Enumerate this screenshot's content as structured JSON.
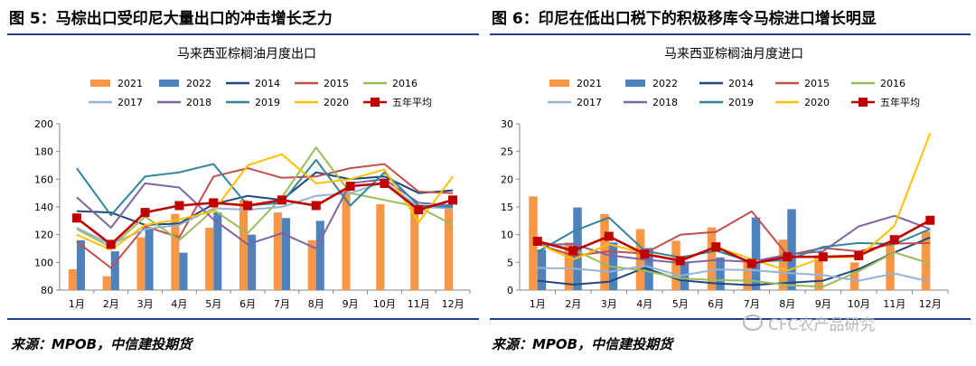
{
  "left_figure": {
    "title": "图 5：马棕出口受印尼大量出口的冲击增长乏力",
    "source": "来源：MPOB，中信建投期货"
  },
  "right_figure": {
    "title": "图 6：印尼在低出口税下的积极移库令马棕进口增长明显",
    "source": "来源：MPOB，中信建投期货"
  },
  "watermark": {
    "text": "CFC农产品研究",
    "icon": "wechat-icon"
  },
  "chart_data": [
    {
      "type": "line",
      "title": "马来西亚棕榈油月度出口",
      "categories": [
        "1月",
        "2月",
        "3月",
        "4月",
        "5月",
        "6月",
        "7月",
        "8月",
        "9月",
        "10月",
        "11月",
        "12月"
      ],
      "ylim": [
        80,
        200
      ],
      "yticks": [
        80,
        100,
        120,
        140,
        160,
        180,
        200
      ],
      "grid": false,
      "legend_position": "top",
      "bar_series": [
        {
          "name": "2021",
          "color": "#f79646",
          "values": [
            95,
            90,
            118,
            135,
            125,
            145,
            136,
            116,
            153,
            142,
            141,
            142
          ]
        },
        {
          "name": "2022",
          "color": "#4f81bd",
          "values": [
            116,
            108,
            125,
            107,
            136,
            120,
            132,
            130,
            null,
            null,
            null,
            null
          ]
        }
      ],
      "line_series": [
        {
          "name": "2014",
          "color": "#1f497d",
          "values": [
            137,
            136,
            127,
            128,
            142,
            148,
            145,
            165,
            160,
            162,
            150,
            152
          ]
        },
        {
          "name": "2015",
          "color": "#c0504d",
          "values": [
            115,
            96,
            126,
            118,
            162,
            168,
            161,
            162,
            168,
            171,
            151,
            150
          ]
        },
        {
          "name": "2016",
          "color": "#9bbb59",
          "values": [
            124,
            111,
            133,
            116,
            138,
            121,
            147,
            183,
            150,
            145,
            140,
            127
          ]
        },
        {
          "name": "2017",
          "color": "#95b3d7",
          "values": [
            125,
            113,
            124,
            127,
            139,
            138,
            140,
            148,
            150,
            158,
            140,
            139
          ]
        },
        {
          "name": "2018",
          "color": "#8064a2",
          "values": [
            147,
            125,
            157,
            154,
            131,
            113,
            121,
            110,
            157,
            160,
            143,
            141
          ]
        },
        {
          "name": "2019",
          "color": "#31859c",
          "values": [
            168,
            134,
            162,
            165,
            171,
            141,
            143,
            174,
            141,
            165,
            141,
            140
          ]
        },
        {
          "name": "2020",
          "color": "#ffc000",
          "values": [
            120,
            109,
            127,
            131,
            137,
            170,
            178,
            157,
            160,
            167,
            129,
            162
          ]
        },
        {
          "name": "五年平均",
          "color": "#c00000",
          "marker": "square",
          "values": [
            132,
            113,
            136,
            141,
            143,
            141,
            145,
            141,
            155,
            157,
            138,
            145
          ]
        }
      ]
    },
    {
      "type": "line",
      "title": "马来西亚棕榈油月度进口",
      "categories": [
        "1月",
        "2月",
        "3月",
        "4月",
        "5月",
        "6月",
        "7月",
        "8月",
        "9月",
        "10月",
        "11月",
        "12月"
      ],
      "ylim": [
        0,
        30
      ],
      "yticks": [
        0,
        5,
        10,
        15,
        20,
        25,
        30
      ],
      "grid": false,
      "legend_position": "top",
      "bar_series": [
        {
          "name": "2021",
          "color": "#f79646",
          "values": [
            16.9,
            8.6,
            13.7,
            11.0,
            8.9,
            11.3,
            5.4,
            9.1,
            6.3,
            5.0,
            8.4,
            10.6
          ]
        },
        {
          "name": "2022",
          "color": "#4f81bd",
          "values": [
            7.3,
            14.9,
            8.6,
            7.6,
            5.1,
            5.9,
            13.1,
            14.6,
            null,
            null,
            null,
            null
          ]
        }
      ],
      "line_series": [
        {
          "name": "2014",
          "color": "#1f497d",
          "values": [
            1.7,
            1.0,
            1.5,
            4.0,
            1.8,
            1.2,
            0.9,
            1.3,
            1.7,
            3.8,
            6.8,
            9.5
          ]
        },
        {
          "name": "2015",
          "color": "#c0504d",
          "values": [
            8.3,
            6.2,
            7.0,
            6.6,
            10.0,
            10.5,
            14.2,
            6.3,
            7.6,
            7.0,
            8.4,
            8.5
          ]
        },
        {
          "name": "2016",
          "color": "#9bbb59",
          "values": [
            8.9,
            7.3,
            4.3,
            3.5,
            2.1,
            1.8,
            1.7,
            0.9,
            0.6,
            3.4,
            6.8,
            4.8
          ]
        },
        {
          "name": "2017",
          "color": "#95b3d7",
          "values": [
            4.0,
            3.9,
            3.3,
            4.4,
            2.6,
            3.7,
            3.6,
            3.1,
            2.7,
            1.7,
            3.0,
            1.5
          ]
        },
        {
          "name": "2018",
          "color": "#8064a2",
          "values": [
            8.2,
            8.3,
            6.3,
            5.5,
            4.9,
            5.4,
            5.1,
            6.4,
            7.0,
            11.5,
            13.4,
            11.0
          ]
        },
        {
          "name": "2019",
          "color": "#31859c",
          "values": [
            6.9,
            10.6,
            13.1,
            7.1,
            5.9,
            7.1,
            5.1,
            5.4,
            7.8,
            8.5,
            8.3,
            11.0
          ]
        },
        {
          "name": "2020",
          "color": "#ffc000",
          "values": [
            8.4,
            5.5,
            8.3,
            6.6,
            5.4,
            7.8,
            5.6,
            3.5,
            5.9,
            6.0,
            11.6,
            28.3
          ]
        },
        {
          "name": "五年平均",
          "color": "#c00000",
          "marker": "square",
          "values": [
            8.8,
            7.1,
            9.7,
            6.5,
            5.3,
            7.8,
            4.8,
            6.0,
            6.0,
            6.2,
            9.1,
            12.6
          ]
        }
      ]
    }
  ]
}
